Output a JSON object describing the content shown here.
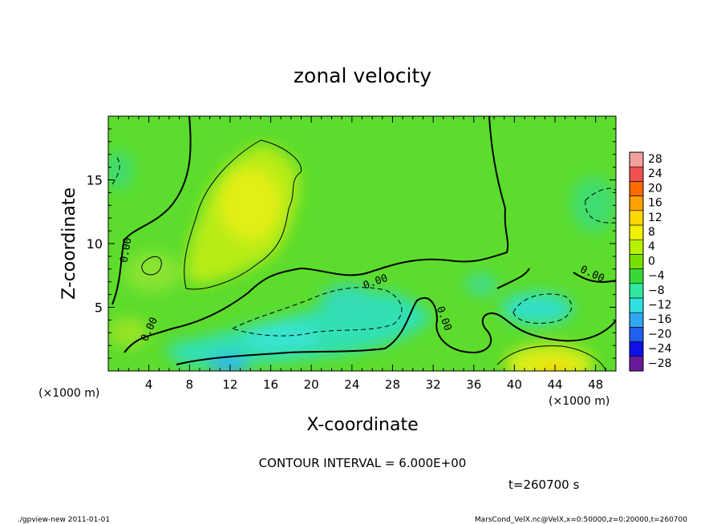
{
  "chart_data": {
    "type": "heatmap",
    "title": "zonal velocity",
    "xlabel": "X-coordinate",
    "ylabel": "Z-coordinate",
    "x_unit_label": "(×1000 m)",
    "z_unit_label": "(×1000 m)",
    "xlim": [
      0,
      50
    ],
    "ylim": [
      0,
      20
    ],
    "x_ticks": [
      "4",
      "8",
      "12",
      "16",
      "20",
      "24",
      "28",
      "32",
      "36",
      "40",
      "44",
      "48"
    ],
    "y_ticks": [
      "5",
      "10",
      "15"
    ],
    "colorbar_levels": [
      "28",
      "24",
      "20",
      "16",
      "12",
      "8",
      "4",
      "0",
      "−4",
      "−8",
      "−12",
      "−16",
      "−20",
      "−24",
      "−28"
    ],
    "colorbar_colors": [
      "#f4a0a0",
      "#f05050",
      "#ff6a00",
      "#ffa000",
      "#ffd800",
      "#f0f000",
      "#b8f000",
      "#78e000",
      "#38d838",
      "#30e8a0",
      "#30e0e0",
      "#30a8f0",
      "#2060f0",
      "#1010e8",
      "#6a1a9a"
    ],
    "contour_interval": "CONTOUR INTERVAL = 6.000E+00",
    "contour_labels": [
      "0.00",
      "0.00",
      "0.00",
      "0.00",
      "0.00"
    ],
    "time_label": "t=260700 s",
    "footer_left": "./gpview-new  2011-01-01",
    "footer_right": "MarsCond_VelX.nc@VelX,x=0:50000,z=0:20000,t=260700"
  }
}
